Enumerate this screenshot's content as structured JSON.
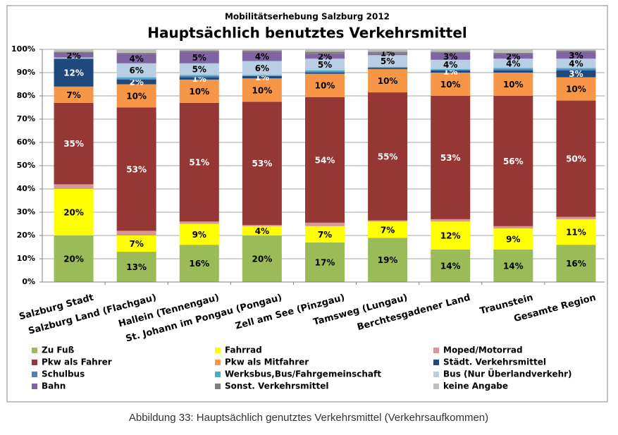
{
  "chart_data": {
    "type": "stacked_bar",
    "subtitle": "Mobilitätserhebung Salzburg 2012",
    "title": "Hauptsächlich benutztes Verkehrsmittel",
    "categories": [
      "Salzburg Stadt",
      "Salzburg Land (Flachgau)",
      "Hallein (Tennengau)",
      "St. Johann im Pongau (Pongau)",
      "Zell am See (Pinzgau)",
      "Tamsweg (Lungau)",
      "Berchtesgadener Land",
      "Traunstein",
      "Gesamte Region"
    ],
    "ylim": [
      0,
      100
    ],
    "yticks": [
      {
        "value": 0,
        "label": "0%"
      },
      {
        "value": 10,
        "label": "10%"
      },
      {
        "value": 20,
        "label": "20%"
      },
      {
        "value": 30,
        "label": "30%"
      },
      {
        "value": 40,
        "label": "40%"
      },
      {
        "value": 50,
        "label": "50%"
      },
      {
        "value": 60,
        "label": "60%"
      },
      {
        "value": 70,
        "label": "70%"
      },
      {
        "value": 80,
        "label": "80%"
      },
      {
        "value": 90,
        "label": "90%"
      },
      {
        "value": 100,
        "label": "100%"
      }
    ],
    "grid": true,
    "series": [
      {
        "name": "Zu Fuß",
        "color": "#9bbb59",
        "values": [
          20,
          13,
          16,
          20,
          17,
          19,
          14,
          14,
          16
        ],
        "value_labels": [
          "20%",
          "13%",
          "16%",
          "20%",
          "17%",
          "19%",
          "14%",
          "14%",
          "16%"
        ]
      },
      {
        "name": "Fahrrad",
        "color": "#ffff00",
        "values": [
          20,
          7,
          9,
          4,
          7,
          7,
          12,
          9,
          11
        ],
        "value_labels": [
          "20%",
          "7%",
          "9%",
          "4%",
          "7%",
          "7%",
          "12%",
          "9%",
          "11%"
        ]
      },
      {
        "name": "Moped/Motorrad",
        "color": "#d99694",
        "values": [
          2,
          2,
          1,
          0.5,
          1.5,
          0.5,
          1,
          1,
          1
        ]
      },
      {
        "name": "Pkw als Fahrer",
        "color": "#953735",
        "values": [
          35,
          53,
          51,
          53,
          54,
          55,
          53,
          56,
          50
        ],
        "value_labels": [
          "35%",
          "53%",
          "51%",
          "53%",
          "54%",
          "55%",
          "53%",
          "56%",
          "50%"
        ]
      },
      {
        "name": "Pkw als Mitfahrer",
        "color": "#f79646",
        "values": [
          7,
          10,
          10,
          10,
          10,
          10,
          10,
          10,
          10
        ],
        "value_labels": [
          "7%",
          "10%",
          "10%",
          "10%",
          "10%",
          "10%",
          "10%",
          "10%",
          "10%"
        ]
      },
      {
        "name": "Städt. Verkehrsmittel",
        "color": "#1f497d",
        "values": [
          12,
          2,
          1,
          1,
          0.5,
          0.5,
          1,
          1,
          3
        ],
        "value_labels": [
          "12%",
          "2%",
          "1%",
          "1%",
          null,
          null,
          "1%",
          null,
          "3%"
        ]
      },
      {
        "name": "Schulbus",
        "color": "#4f81bd",
        "values": [
          0,
          0.5,
          0.5,
          0,
          0.5,
          0,
          0,
          0.5,
          0.5
        ]
      },
      {
        "name": "Werksbus,Bus/Fahrgemeinschaft",
        "color": "#4bacc6",
        "values": [
          0,
          0.5,
          0.5,
          0.5,
          0.5,
          0.5,
          0.5,
          0.5,
          0.5
        ]
      },
      {
        "name": "Bus (Nur Überlandverkehr)",
        "color": "#b9cde5",
        "values": [
          0.5,
          6,
          5,
          6,
          5,
          5,
          4,
          4,
          4
        ],
        "value_labels": [
          null,
          "6%",
          "5%",
          "6%",
          "5%",
          "5%",
          "4%",
          "4%",
          "4%"
        ]
      },
      {
        "name": "Bahn",
        "color": "#8064a2",
        "values": [
          2,
          4,
          5,
          4,
          2,
          0.5,
          3,
          2,
          3
        ],
        "value_labels": [
          "2%",
          "4%",
          "5%",
          "4%",
          "2%",
          null,
          "3%",
          "2%",
          "3%"
        ]
      },
      {
        "name": "Sonst. Verkehrsmittel",
        "color": "#7f7f7f",
        "values": [
          0.5,
          0.5,
          0.5,
          0.5,
          1,
          1,
          0.5,
          0.5,
          0.5
        ],
        "value_labels": [
          null,
          null,
          null,
          null,
          null,
          "1%",
          null,
          null,
          null
        ]
      },
      {
        "name": "keine Angabe",
        "color": "#bfbfbf",
        "values": [
          1,
          1.5,
          0.5,
          0.5,
          1,
          1,
          1,
          1.5,
          0.5
        ]
      }
    ]
  },
  "caption": "Abbildung 33: Hauptsächlich genutztes Verkehrsmittel (Verkehrsaufkommen)"
}
